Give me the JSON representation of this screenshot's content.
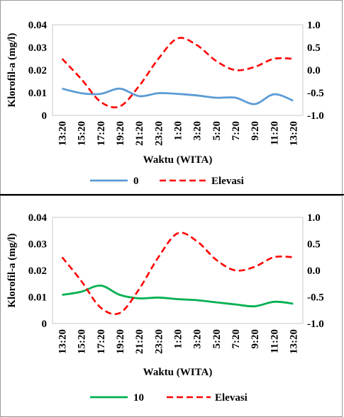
{
  "chart_data": [
    {
      "type": "line",
      "xlabel": "Waktu (WITA)",
      "ylabel": "Klorofil-a (mg/l)",
      "x": [
        "13:20",
        "15:20",
        "17:20",
        "19:20",
        "21:20",
        "23:20",
        "1:20",
        "3:20",
        "5:20",
        "7:20",
        "9:20",
        "11:20",
        "13:20"
      ],
      "ylim": [
        0,
        0.04
      ],
      "yticks": [
        "0",
        "0.01",
        "0.02",
        "0.03",
        "0.04"
      ],
      "y2lim": [
        -1.0,
        1.0
      ],
      "y2ticks": [
        "1.0",
        "0.5",
        "0.0",
        "-0.5",
        "-1.0"
      ],
      "grid": false,
      "legend": "bottom",
      "series": [
        {
          "name": "0",
          "axis": "left",
          "color": "#5B9BD5",
          "dash": "solid",
          "values": [
            0.0118,
            0.0098,
            0.0095,
            0.0118,
            0.0085,
            0.0098,
            0.0095,
            0.0088,
            0.0078,
            0.0078,
            0.005,
            0.0093,
            0.0065
          ]
        },
        {
          "name": "Elevasi",
          "axis": "right",
          "color": "#FF0000",
          "dash": "dashed",
          "values": [
            0.25,
            -0.2,
            -0.7,
            -0.8,
            -0.35,
            0.25,
            0.7,
            0.55,
            0.2,
            0.0,
            0.07,
            0.25,
            0.25
          ]
        }
      ]
    },
    {
      "type": "line",
      "xlabel": "Waktu (WITA)",
      "ylabel": "Klorofil-a (mg/l)",
      "x": [
        "13:20",
        "15:20",
        "17:20",
        "19:20",
        "21:20",
        "23:20",
        "1:20",
        "3:20",
        "5:20",
        "7:20",
        "9:20",
        "11:20",
        "13:20"
      ],
      "ylim": [
        0,
        0.04
      ],
      "yticks": [
        "0",
        "0.01",
        "0.02",
        "0.03",
        "0.04"
      ],
      "y2lim": [
        -1.0,
        1.0
      ],
      "y2ticks": [
        "1.0",
        "0.5",
        "0.0",
        "-0.5",
        "-1.0"
      ],
      "grid": false,
      "legend": "bottom",
      "series": [
        {
          "name": "10",
          "axis": "left",
          "color": "#00B050",
          "dash": "solid",
          "values": [
            0.0108,
            0.012,
            0.0143,
            0.0108,
            0.0095,
            0.0098,
            0.0092,
            0.0088,
            0.008,
            0.0072,
            0.0065,
            0.0082,
            0.0075
          ]
        },
        {
          "name": "Elevasi",
          "axis": "right",
          "color": "#FF0000",
          "dash": "dashed",
          "values": [
            0.25,
            -0.2,
            -0.7,
            -0.8,
            -0.35,
            0.25,
            0.7,
            0.55,
            0.2,
            0.0,
            0.07,
            0.25,
            0.25
          ]
        }
      ]
    }
  ]
}
